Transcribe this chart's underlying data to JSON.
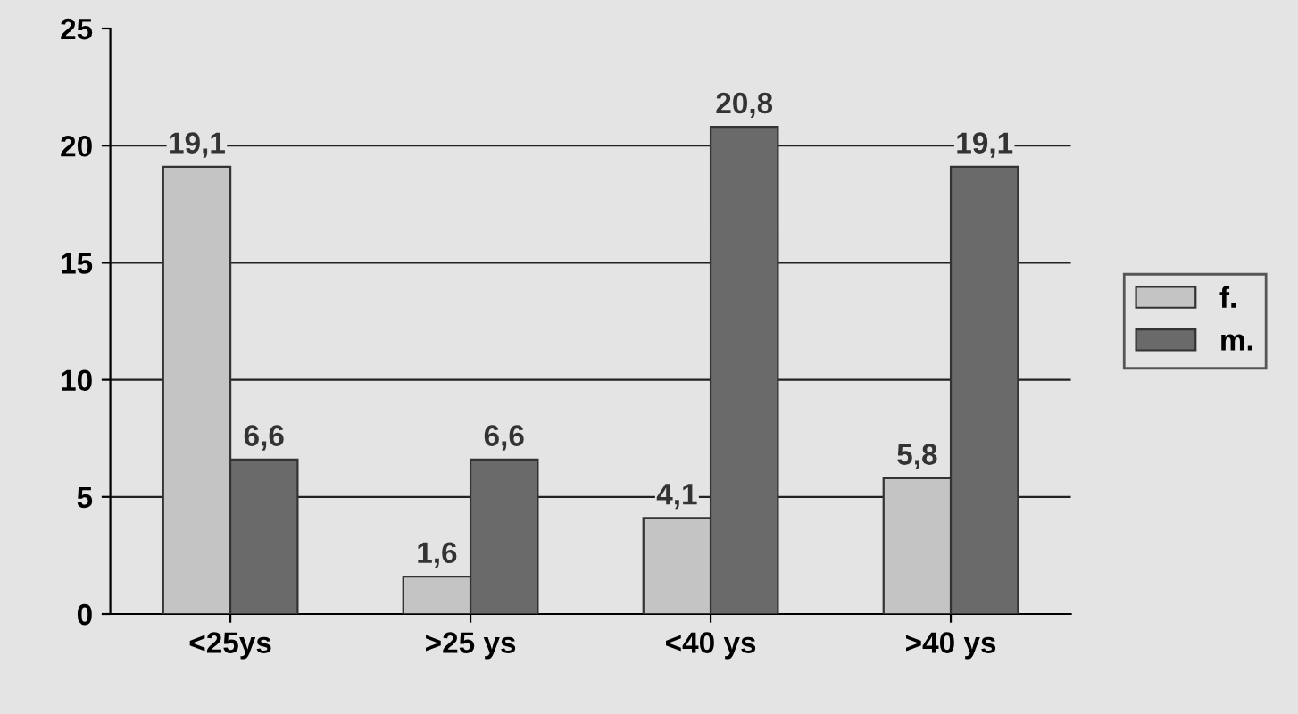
{
  "chart_data": {
    "type": "bar",
    "categories": [
      "<25ys",
      ">25 ys",
      "<40 ys",
      ">40 ys"
    ],
    "series": [
      {
        "name": "f.",
        "color": "#c4c4c4",
        "values": [
          19.1,
          1.6,
          4.1,
          5.8
        ],
        "value_labels": [
          "19,1",
          "1,6",
          "4,1",
          "5,8"
        ]
      },
      {
        "name": "m.",
        "color": "#6a6a6a",
        "values": [
          6.6,
          6.6,
          20.8,
          19.1
        ],
        "value_labels": [
          "6,6",
          "6,6",
          "20,8",
          "19,1"
        ]
      }
    ],
    "ylim": [
      0,
      25
    ],
    "yticks": [
      0,
      5,
      10,
      15,
      20,
      25
    ],
    "grid": "y",
    "legend": "right"
  }
}
